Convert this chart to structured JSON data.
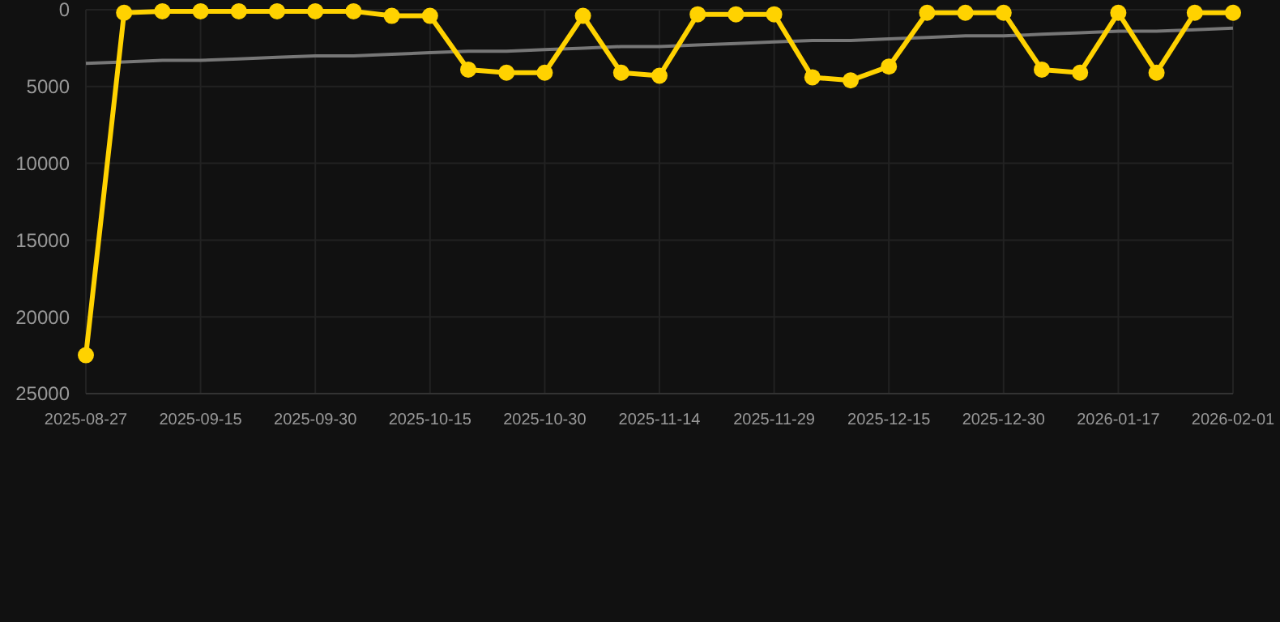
{
  "chart_data": {
    "type": "line",
    "categories": [
      "2025-08-27",
      null,
      null,
      "2025-09-15",
      null,
      null,
      "2025-09-30",
      null,
      null,
      "2025-10-15",
      null,
      null,
      "2025-10-30",
      null,
      null,
      "2025-11-14",
      null,
      null,
      "2025-11-29",
      null,
      null,
      "2025-12-15",
      null,
      null,
      "2025-12-30",
      null,
      null,
      "2026-01-17",
      null,
      null,
      "2026-02-01"
    ],
    "series": [
      {
        "color": "#ffd200",
        "marker": "circle",
        "values": [
          22500,
          200,
          100,
          100,
          100,
          100,
          100,
          100,
          400,
          400,
          3900,
          4100,
          4100,
          400,
          4100,
          4300,
          300,
          300,
          300,
          4400,
          4600,
          3700,
          200,
          200,
          200,
          3900,
          4100,
          200,
          4100,
          200,
          200
        ]
      },
      {
        "type": "line",
        "color": "#777777",
        "marker": "none",
        "values": [
          3500,
          3400,
          3300,
          3300,
          3200,
          3100,
          3000,
          3000,
          2900,
          2800,
          2700,
          2700,
          2600,
          2500,
          2400,
          2400,
          2300,
          2200,
          2100,
          2000,
          2000,
          1900,
          1800,
          1700,
          1700,
          1600,
          1500,
          1400,
          1400,
          1300,
          1200
        ]
      }
    ],
    "ylim": [
      25000,
      0
    ],
    "yticks": [
      0,
      5000,
      10000,
      15000,
      20000,
      25000
    ],
    "grid": true
  }
}
